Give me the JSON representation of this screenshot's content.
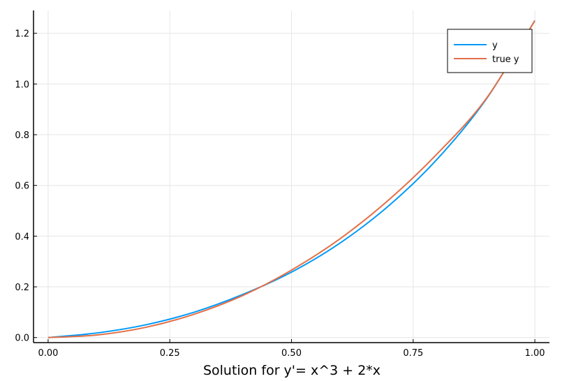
{
  "chart_data": {
    "type": "line",
    "title": "",
    "xlabel": "Solution for y'= x^3 + 2*x",
    "ylabel": "",
    "xlim": [
      -0.03,
      1.03
    ],
    "ylim": [
      -0.02,
      1.29
    ],
    "xticks": [
      0.0,
      0.25,
      0.5,
      0.75,
      1.0
    ],
    "xtick_labels": [
      "0.00",
      "0.25",
      "0.50",
      "0.75",
      "1.00"
    ],
    "yticks": [
      0.0,
      0.2,
      0.4,
      0.6,
      0.8,
      1.0,
      1.2
    ],
    "ytick_labels": [
      "0.0",
      "0.2",
      "0.4",
      "0.6",
      "0.8",
      "1.0",
      "1.2"
    ],
    "grid": true,
    "legend_position": "top-right",
    "series": [
      {
        "name": "y",
        "color": "#009af9",
        "x": [
          0.0,
          0.1,
          0.2,
          0.3,
          0.4,
          0.5,
          0.6,
          0.7,
          0.8,
          0.9,
          1.0
        ],
        "y": [
          0.0,
          0.018,
          0.05,
          0.1,
          0.17,
          0.258,
          0.373,
          0.52,
          0.705,
          0.94,
          1.25
        ]
      },
      {
        "name": "true y",
        "color": "#e26f46",
        "x": [
          0.0,
          0.1,
          0.2,
          0.3,
          0.4,
          0.5,
          0.6,
          0.7,
          0.8,
          0.9,
          1.0
        ],
        "y": [
          0.0,
          0.01,
          0.04,
          0.092,
          0.166,
          0.266,
          0.39,
          0.543,
          0.726,
          0.942,
          1.25
        ]
      }
    ]
  }
}
